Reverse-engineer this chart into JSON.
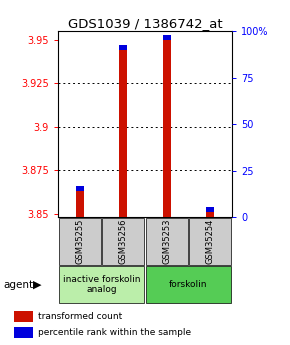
{
  "title": "GDS1039 / 1386742_at",
  "samples": [
    "GSM35255",
    "GSM35256",
    "GSM35253",
    "GSM35254"
  ],
  "red_values": [
    3.863,
    3.944,
    3.95,
    3.851
  ],
  "blue_values": [
    3.866,
    3.947,
    3.953,
    3.854
  ],
  "ylim": [
    3.848,
    3.955
  ],
  "yticks_left": [
    3.85,
    3.875,
    3.9,
    3.925,
    3.95
  ],
  "ytick_labels_left": [
    "3.85",
    "3.875",
    "3.9",
    "3.925",
    "3.95"
  ],
  "yticks_right_pct": [
    0,
    25,
    50,
    75,
    100
  ],
  "ytick_labels_right": [
    "0",
    "25",
    "50",
    "75",
    "100%"
  ],
  "bar_bottom": 3.848,
  "groups": [
    {
      "label": "inactive forskolin\nanalog",
      "samples": [
        0,
        1
      ],
      "color": "#bbeeaa"
    },
    {
      "label": "forskolin",
      "samples": [
        2,
        3
      ],
      "color": "#55cc55"
    }
  ],
  "legend_red": "transformed count",
  "legend_blue": "percentile rank within the sample",
  "red_color": "#cc1100",
  "blue_color": "#0000dd",
  "bar_width": 0.18,
  "sample_box_color": "#cccccc",
  "title_fontsize": 9.5,
  "tick_fontsize": 7,
  "sample_fontsize": 6,
  "group_fontsize": 6.5,
  "legend_fontsize": 6.5
}
